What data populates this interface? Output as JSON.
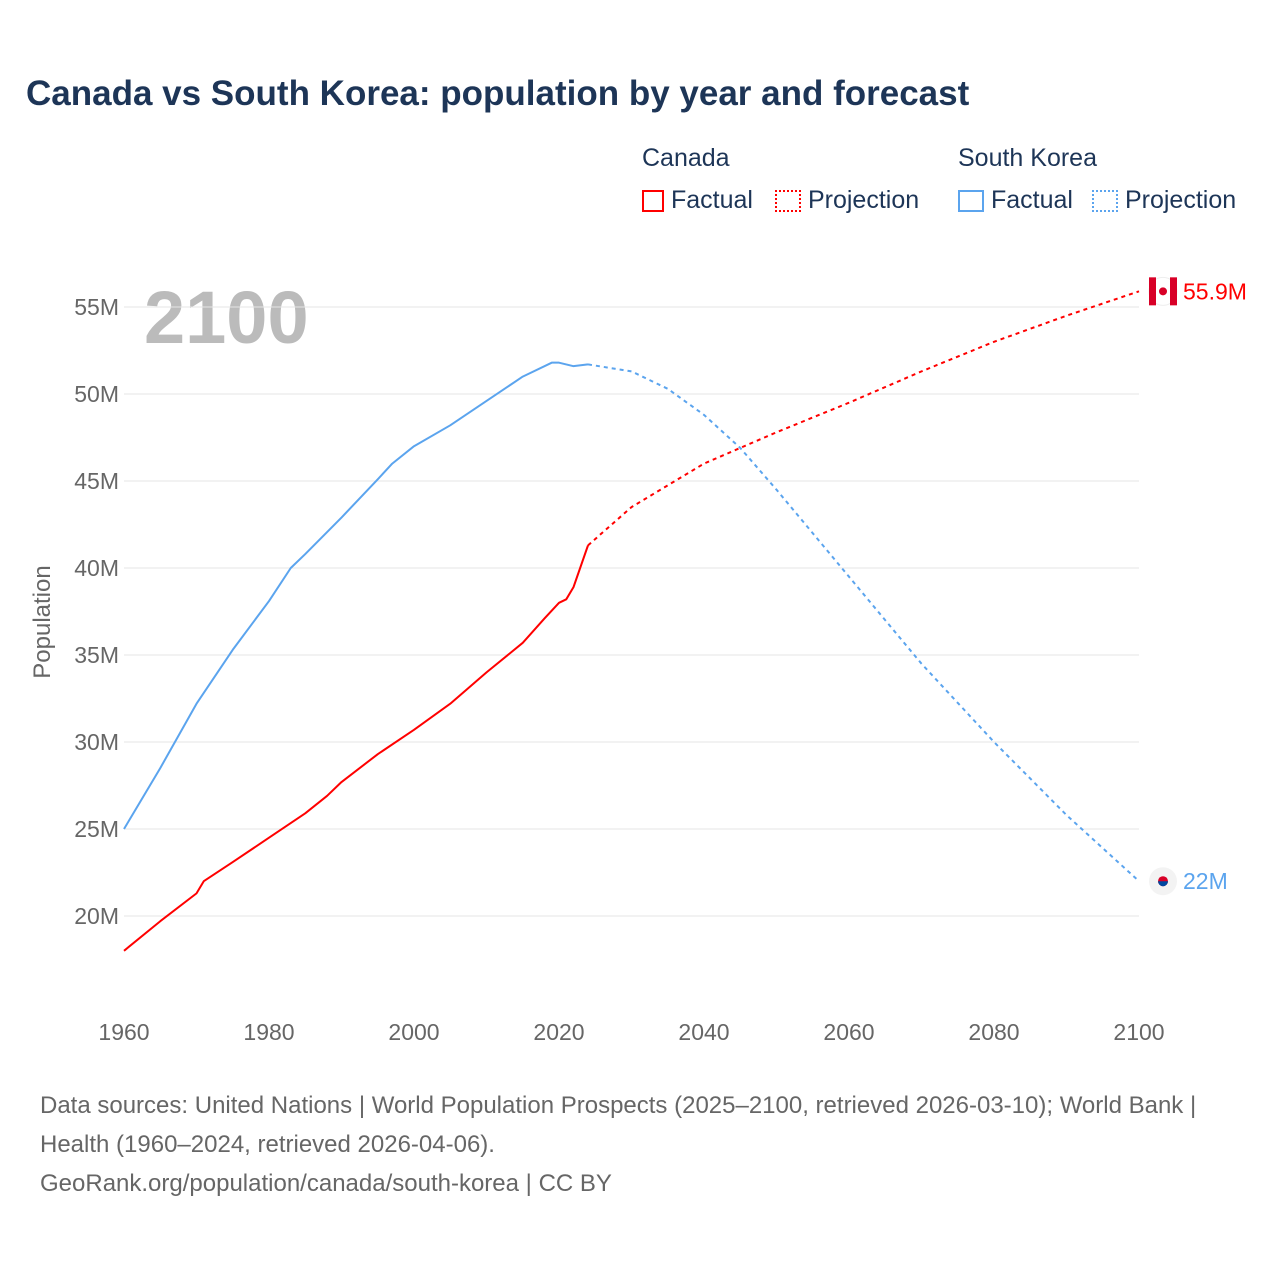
{
  "title": "Canada vs South Korea: population by year and forecast",
  "legend": {
    "canada": "Canada",
    "south_korea": "South Korea",
    "factual": "Factual",
    "projection": "Projection"
  },
  "year_display": "2100",
  "source_line1": "Data sources: United Nations | World Population Prospects (2025–2100, retrieved 2026-03-10); World Bank | Health (1960–2024, retrieved 2026-04-06).",
  "source_line2": "GeoRank.org/population/canada/south-korea | CC BY",
  "colors": {
    "canada": "#ff0000",
    "south_korea": "#5ba4ee"
  },
  "chart_data": {
    "type": "line",
    "ylabel": "Population",
    "xlim": [
      1960,
      2100
    ],
    "ylim": [
      15,
      57
    ],
    "xticks": [
      "1960",
      "1980",
      "2000",
      "2020",
      "2040",
      "2060",
      "2080",
      "2100"
    ],
    "yticks": [
      "20M",
      "25M",
      "30M",
      "35M",
      "40M",
      "45M",
      "50M",
      "55M"
    ],
    "end_labels": {
      "canada": "55.9M",
      "south_korea": "22M"
    },
    "series": [
      {
        "name": "Canada Factual",
        "x": [
          1960,
          1965,
          1970,
          1971,
          1975,
          1980,
          1985,
          1988,
          1990,
          1995,
          2000,
          2005,
          2010,
          2015,
          2018,
          2020,
          2021,
          2022,
          2023,
          2024
        ],
        "values": [
          18.0,
          19.7,
          21.3,
          22.0,
          23.1,
          24.5,
          25.9,
          26.9,
          27.7,
          29.3,
          30.7,
          32.2,
          34.0,
          35.7,
          37.1,
          38.0,
          38.2,
          38.9,
          40.1,
          41.3
        ]
      },
      {
        "name": "Canada Projection",
        "x": [
          2024,
          2030,
          2040,
          2050,
          2060,
          2070,
          2080,
          2090,
          2100
        ],
        "values": [
          41.3,
          43.5,
          46.0,
          47.8,
          49.5,
          51.3,
          53.0,
          54.5,
          55.9
        ]
      },
      {
        "name": "South Korea Factual",
        "x": [
          1960,
          1965,
          1970,
          1975,
          1980,
          1983,
          1985,
          1990,
          1995,
          1997,
          2000,
          2005,
          2010,
          2015,
          2019,
          2020,
          2022,
          2024
        ],
        "values": [
          25.0,
          28.5,
          32.2,
          35.3,
          38.1,
          40.0,
          40.8,
          42.9,
          45.1,
          46.0,
          47.0,
          48.2,
          49.6,
          51.0,
          51.8,
          51.8,
          51.6,
          51.7
        ]
      },
      {
        "name": "South Korea Projection",
        "x": [
          2024,
          2030,
          2035,
          2040,
          2045,
          2050,
          2060,
          2070,
          2080,
          2090,
          2100
        ],
        "values": [
          51.7,
          51.3,
          50.3,
          48.8,
          46.9,
          44.5,
          39.5,
          34.5,
          30.0,
          25.8,
          22.0
        ]
      }
    ]
  }
}
